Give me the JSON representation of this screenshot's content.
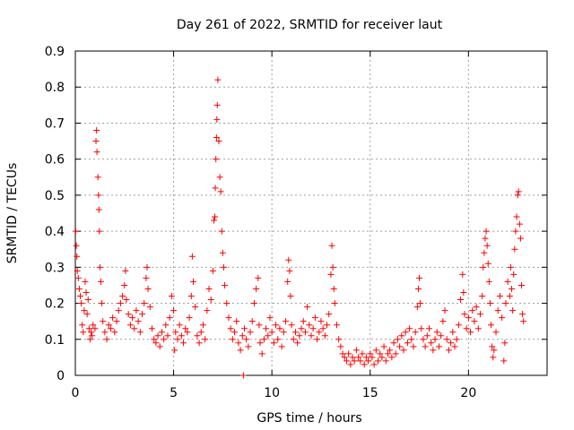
{
  "chart_data": {
    "type": "scatter",
    "title": "Day 261 of 2022, SRMTID for receiver laut",
    "xlabel": "GPS time / hours",
    "ylabel": "SRMTID / TECUs",
    "xlim": [
      0,
      24
    ],
    "ylim": [
      0,
      0.9
    ],
    "xticks": [
      0,
      5,
      10,
      15,
      20
    ],
    "xtick_labels": [
      "0",
      "5",
      "10",
      "15",
      "20"
    ],
    "yticks": [
      0,
      0.1,
      0.2,
      0.3,
      0.4,
      0.5,
      0.6,
      0.7,
      0.8,
      0.9
    ],
    "ytick_labels": [
      "0",
      "0.1",
      "0.2",
      "0.3",
      "0.4",
      "0.5",
      "0.6",
      "0.7",
      "0.8",
      "0.9"
    ],
    "grid": true,
    "marker": "+",
    "color": "#ff0000",
    "series": [
      {
        "name": "SRMTID",
        "points": [
          [
            0.02,
            0.4
          ],
          [
            0.05,
            0.36
          ],
          [
            0.08,
            0.33
          ],
          [
            0.1,
            0.29
          ],
          [
            0.15,
            0.27
          ],
          [
            0.2,
            0.24
          ],
          [
            0.25,
            0.22
          ],
          [
            0.3,
            0.2
          ],
          [
            0.35,
            0.14
          ],
          [
            0.4,
            0.12
          ],
          [
            0.45,
            0.18
          ],
          [
            0.5,
            0.26
          ],
          [
            0.55,
            0.23
          ],
          [
            0.6,
            0.17
          ],
          [
            0.65,
            0.21
          ],
          [
            0.7,
            0.13
          ],
          [
            0.75,
            0.1
          ],
          [
            0.8,
            0.12
          ],
          [
            0.85,
            0.11
          ],
          [
            0.9,
            0.14
          ],
          [
            1.0,
            0.13
          ],
          [
            1.05,
            0.65
          ],
          [
            1.08,
            0.68
          ],
          [
            1.1,
            0.62
          ],
          [
            1.15,
            0.55
          ],
          [
            1.18,
            0.5
          ],
          [
            1.2,
            0.46
          ],
          [
            1.22,
            0.4
          ],
          [
            1.25,
            0.3
          ],
          [
            1.3,
            0.26
          ],
          [
            1.35,
            0.2
          ],
          [
            1.4,
            0.15
          ],
          [
            1.5,
            0.12
          ],
          [
            1.6,
            0.1
          ],
          [
            1.7,
            0.14
          ],
          [
            1.8,
            0.13
          ],
          [
            1.9,
            0.16
          ],
          [
            2.0,
            0.12
          ],
          [
            2.1,
            0.15
          ],
          [
            2.2,
            0.18
          ],
          [
            2.3,
            0.2
          ],
          [
            2.4,
            0.22
          ],
          [
            2.5,
            0.25
          ],
          [
            2.55,
            0.29
          ],
          [
            2.6,
            0.21
          ],
          [
            2.7,
            0.17
          ],
          [
            2.8,
            0.14
          ],
          [
            2.9,
            0.16
          ],
          [
            3.0,
            0.13
          ],
          [
            3.1,
            0.18
          ],
          [
            3.2,
            0.15
          ],
          [
            3.3,
            0.12
          ],
          [
            3.4,
            0.17
          ],
          [
            3.5,
            0.2
          ],
          [
            3.6,
            0.27
          ],
          [
            3.65,
            0.3
          ],
          [
            3.7,
            0.24
          ],
          [
            3.8,
            0.19
          ],
          [
            3.9,
            0.13
          ],
          [
            4.0,
            0.1
          ],
          [
            4.1,
            0.09
          ],
          [
            4.2,
            0.11
          ],
          [
            4.3,
            0.08
          ],
          [
            4.4,
            0.12
          ],
          [
            4.5,
            0.1
          ],
          [
            4.6,
            0.14
          ],
          [
            4.7,
            0.11
          ],
          [
            4.8,
            0.16
          ],
          [
            4.9,
            0.22
          ],
          [
            5.0,
            0.18
          ],
          [
            5.05,
            0.07
          ],
          [
            5.1,
            0.12
          ],
          [
            5.2,
            0.1
          ],
          [
            5.3,
            0.14
          ],
          [
            5.4,
            0.11
          ],
          [
            5.5,
            0.09
          ],
          [
            5.6,
            0.13
          ],
          [
            5.7,
            0.12
          ],
          [
            5.8,
            0.16
          ],
          [
            5.9,
            0.22
          ],
          [
            5.95,
            0.33
          ],
          [
            6.0,
            0.26
          ],
          [
            6.1,
            0.19
          ],
          [
            6.2,
            0.11
          ],
          [
            6.3,
            0.09
          ],
          [
            6.4,
            0.12
          ],
          [
            6.5,
            0.14
          ],
          [
            6.6,
            0.1
          ],
          [
            6.7,
            0.18
          ],
          [
            6.8,
            0.24
          ],
          [
            6.9,
            0.21
          ],
          [
            7.0,
            0.29
          ],
          [
            7.05,
            0.43
          ],
          [
            7.1,
            0.44
          ],
          [
            7.12,
            0.52
          ],
          [
            7.15,
            0.6
          ],
          [
            7.18,
            0.66
          ],
          [
            7.2,
            0.71
          ],
          [
            7.22,
            0.75
          ],
          [
            7.25,
            0.82
          ],
          [
            7.3,
            0.65
          ],
          [
            7.35,
            0.55
          ],
          [
            7.4,
            0.51
          ],
          [
            7.45,
            0.4
          ],
          [
            7.5,
            0.34
          ],
          [
            7.55,
            0.3
          ],
          [
            7.6,
            0.25
          ],
          [
            7.7,
            0.2
          ],
          [
            7.8,
            0.16
          ],
          [
            7.9,
            0.13
          ],
          [
            8.0,
            0.1
          ],
          [
            8.1,
            0.12
          ],
          [
            8.2,
            0.15
          ],
          [
            8.3,
            0.09
          ],
          [
            8.4,
            0.07
          ],
          [
            8.5,
            0.11
          ],
          [
            8.55,
            0.0
          ],
          [
            8.6,
            0.13
          ],
          [
            8.7,
            0.1
          ],
          [
            8.8,
            0.08
          ],
          [
            8.9,
            0.12
          ],
          [
            9.0,
            0.15
          ],
          [
            9.1,
            0.2
          ],
          [
            9.2,
            0.24
          ],
          [
            9.3,
            0.27
          ],
          [
            9.35,
            0.14
          ],
          [
            9.4,
            0.09
          ],
          [
            9.5,
            0.06
          ],
          [
            9.6,
            0.1
          ],
          [
            9.7,
            0.13
          ],
          [
            9.8,
            0.11
          ],
          [
            9.9,
            0.16
          ],
          [
            10.0,
            0.12
          ],
          [
            10.1,
            0.09
          ],
          [
            10.2,
            0.14
          ],
          [
            10.3,
            0.1
          ],
          [
            10.4,
            0.13
          ],
          [
            10.5,
            0.08
          ],
          [
            10.6,
            0.12
          ],
          [
            10.7,
            0.15
          ],
          [
            10.8,
            0.26
          ],
          [
            10.85,
            0.32
          ],
          [
            10.9,
            0.29
          ],
          [
            10.95,
            0.22
          ],
          [
            11.0,
            0.14
          ],
          [
            11.1,
            0.1
          ],
          [
            11.2,
            0.12
          ],
          [
            11.3,
            0.09
          ],
          [
            11.4,
            0.11
          ],
          [
            11.5,
            0.13
          ],
          [
            11.6,
            0.15
          ],
          [
            11.7,
            0.12
          ],
          [
            11.8,
            0.19
          ],
          [
            11.9,
            0.14
          ],
          [
            12.0,
            0.11
          ],
          [
            12.1,
            0.13
          ],
          [
            12.2,
            0.16
          ],
          [
            12.3,
            0.1
          ],
          [
            12.4,
            0.12
          ],
          [
            12.5,
            0.15
          ],
          [
            12.6,
            0.13
          ],
          [
            12.7,
            0.11
          ],
          [
            12.8,
            0.14
          ],
          [
            12.9,
            0.17
          ],
          [
            13.0,
            0.28
          ],
          [
            13.05,
            0.36
          ],
          [
            13.1,
            0.3
          ],
          [
            13.15,
            0.24
          ],
          [
            13.2,
            0.2
          ],
          [
            13.3,
            0.14
          ],
          [
            13.4,
            0.1
          ],
          [
            13.5,
            0.08
          ],
          [
            13.6,
            0.06
          ],
          [
            13.7,
            0.05
          ],
          [
            13.8,
            0.04
          ],
          [
            13.9,
            0.06
          ],
          [
            14.0,
            0.03
          ],
          [
            14.1,
            0.05
          ],
          [
            14.2,
            0.04
          ],
          [
            14.3,
            0.07
          ],
          [
            14.4,
            0.05
          ],
          [
            14.5,
            0.04
          ],
          [
            14.6,
            0.06
          ],
          [
            14.7,
            0.03
          ],
          [
            14.8,
            0.05
          ],
          [
            14.9,
            0.04
          ],
          [
            15.0,
            0.06
          ],
          [
            15.1,
            0.05
          ],
          [
            15.2,
            0.03
          ],
          [
            15.3,
            0.07
          ],
          [
            15.4,
            0.04
          ],
          [
            15.5,
            0.06
          ],
          [
            15.6,
            0.05
          ],
          [
            15.7,
            0.08
          ],
          [
            15.8,
            0.04
          ],
          [
            15.9,
            0.06
          ],
          [
            16.0,
            0.07
          ],
          [
            16.1,
            0.05
          ],
          [
            16.2,
            0.09
          ],
          [
            16.3,
            0.06
          ],
          [
            16.4,
            0.1
          ],
          [
            16.5,
            0.08
          ],
          [
            16.6,
            0.11
          ],
          [
            16.7,
            0.07
          ],
          [
            16.8,
            0.12
          ],
          [
            16.9,
            0.09
          ],
          [
            17.0,
            0.13
          ],
          [
            17.1,
            0.1
          ],
          [
            17.2,
            0.08
          ],
          [
            17.3,
            0.12
          ],
          [
            17.4,
            0.19
          ],
          [
            17.45,
            0.24
          ],
          [
            17.5,
            0.27
          ],
          [
            17.55,
            0.2
          ],
          [
            17.6,
            0.13
          ],
          [
            17.7,
            0.1
          ],
          [
            17.8,
            0.08
          ],
          [
            17.9,
            0.11
          ],
          [
            18.0,
            0.13
          ],
          [
            18.1,
            0.09
          ],
          [
            18.2,
            0.07
          ],
          [
            18.3,
            0.1
          ],
          [
            18.4,
            0.12
          ],
          [
            18.5,
            0.08
          ],
          [
            18.6,
            0.11
          ],
          [
            18.7,
            0.15
          ],
          [
            18.8,
            0.18
          ],
          [
            18.9,
            0.1
          ],
          [
            19.0,
            0.07
          ],
          [
            19.1,
            0.09
          ],
          [
            19.2,
            0.12
          ],
          [
            19.3,
            0.08
          ],
          [
            19.4,
            0.1
          ],
          [
            19.5,
            0.14
          ],
          [
            19.6,
            0.21
          ],
          [
            19.7,
            0.28
          ],
          [
            19.75,
            0.23
          ],
          [
            19.8,
            0.17
          ],
          [
            19.9,
            0.13
          ],
          [
            20.0,
            0.16
          ],
          [
            20.1,
            0.12
          ],
          [
            20.2,
            0.18
          ],
          [
            20.3,
            0.15
          ],
          [
            20.4,
            0.19
          ],
          [
            20.5,
            0.13
          ],
          [
            20.6,
            0.17
          ],
          [
            20.7,
            0.22
          ],
          [
            20.75,
            0.3
          ],
          [
            20.8,
            0.34
          ],
          [
            20.85,
            0.38
          ],
          [
            20.9,
            0.4
          ],
          [
            20.95,
            0.36
          ],
          [
            21.0,
            0.31
          ],
          [
            21.05,
            0.26
          ],
          [
            21.1,
            0.2
          ],
          [
            21.15,
            0.14
          ],
          [
            21.2,
            0.08
          ],
          [
            21.25,
            0.05
          ],
          [
            21.3,
            0.07
          ],
          [
            21.4,
            0.12
          ],
          [
            21.5,
            0.18
          ],
          [
            21.6,
            0.22
          ],
          [
            21.7,
            0.16
          ],
          [
            21.8,
            0.04
          ],
          [
            21.85,
            0.09
          ],
          [
            21.9,
            0.2
          ],
          [
            22.0,
            0.26
          ],
          [
            22.1,
            0.22
          ],
          [
            22.15,
            0.3
          ],
          [
            22.2,
            0.24
          ],
          [
            22.25,
            0.18
          ],
          [
            22.3,
            0.28
          ],
          [
            22.35,
            0.35
          ],
          [
            22.4,
            0.4
          ],
          [
            22.45,
            0.44
          ],
          [
            22.5,
            0.5
          ],
          [
            22.55,
            0.51
          ],
          [
            22.6,
            0.42
          ],
          [
            22.65,
            0.38
          ],
          [
            22.7,
            0.25
          ],
          [
            22.75,
            0.17
          ],
          [
            22.8,
            0.15
          ]
        ]
      }
    ]
  }
}
